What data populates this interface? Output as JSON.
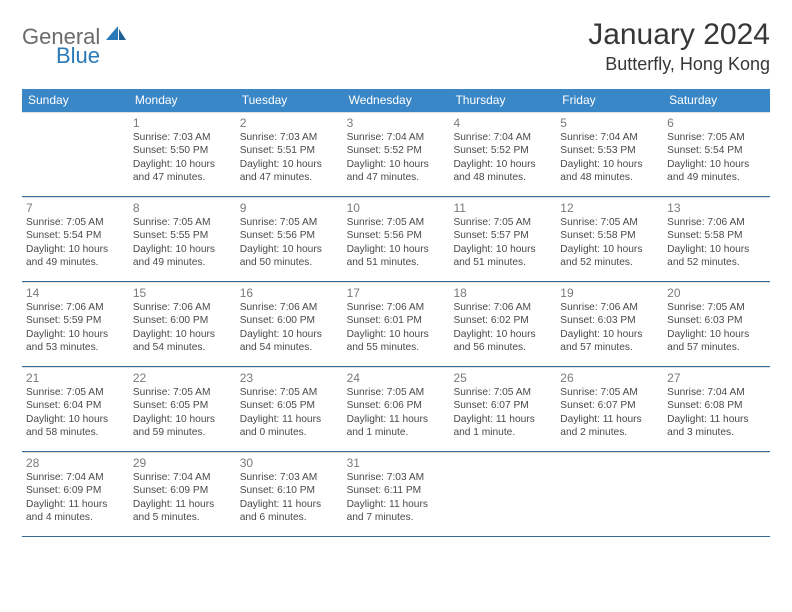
{
  "brand": {
    "part1": "General",
    "part2": "Blue"
  },
  "title": "January 2024",
  "location": "Butterfly, Hong Kong",
  "colors": {
    "header_bg": "#3a87c7",
    "header_text": "#ffffff",
    "rule": "#3a6a9a",
    "daynum": "#7a7a7a",
    "body_text": "#4a4a4a",
    "title_text": "#373737",
    "logo_gray": "#6b6b6b",
    "logo_blue": "#2a7ab9"
  },
  "day_names": [
    "Sunday",
    "Monday",
    "Tuesday",
    "Wednesday",
    "Thursday",
    "Friday",
    "Saturday"
  ],
  "weeks": [
    [
      {
        "n": "",
        "sr": "",
        "ss": "",
        "dl": ""
      },
      {
        "n": "1",
        "sr": "Sunrise: 7:03 AM",
        "ss": "Sunset: 5:50 PM",
        "dl": "Daylight: 10 hours and 47 minutes."
      },
      {
        "n": "2",
        "sr": "Sunrise: 7:03 AM",
        "ss": "Sunset: 5:51 PM",
        "dl": "Daylight: 10 hours and 47 minutes."
      },
      {
        "n": "3",
        "sr": "Sunrise: 7:04 AM",
        "ss": "Sunset: 5:52 PM",
        "dl": "Daylight: 10 hours and 47 minutes."
      },
      {
        "n": "4",
        "sr": "Sunrise: 7:04 AM",
        "ss": "Sunset: 5:52 PM",
        "dl": "Daylight: 10 hours and 48 minutes."
      },
      {
        "n": "5",
        "sr": "Sunrise: 7:04 AM",
        "ss": "Sunset: 5:53 PM",
        "dl": "Daylight: 10 hours and 48 minutes."
      },
      {
        "n": "6",
        "sr": "Sunrise: 7:05 AM",
        "ss": "Sunset: 5:54 PM",
        "dl": "Daylight: 10 hours and 49 minutes."
      }
    ],
    [
      {
        "n": "7",
        "sr": "Sunrise: 7:05 AM",
        "ss": "Sunset: 5:54 PM",
        "dl": "Daylight: 10 hours and 49 minutes."
      },
      {
        "n": "8",
        "sr": "Sunrise: 7:05 AM",
        "ss": "Sunset: 5:55 PM",
        "dl": "Daylight: 10 hours and 49 minutes."
      },
      {
        "n": "9",
        "sr": "Sunrise: 7:05 AM",
        "ss": "Sunset: 5:56 PM",
        "dl": "Daylight: 10 hours and 50 minutes."
      },
      {
        "n": "10",
        "sr": "Sunrise: 7:05 AM",
        "ss": "Sunset: 5:56 PM",
        "dl": "Daylight: 10 hours and 51 minutes."
      },
      {
        "n": "11",
        "sr": "Sunrise: 7:05 AM",
        "ss": "Sunset: 5:57 PM",
        "dl": "Daylight: 10 hours and 51 minutes."
      },
      {
        "n": "12",
        "sr": "Sunrise: 7:05 AM",
        "ss": "Sunset: 5:58 PM",
        "dl": "Daylight: 10 hours and 52 minutes."
      },
      {
        "n": "13",
        "sr": "Sunrise: 7:06 AM",
        "ss": "Sunset: 5:58 PM",
        "dl": "Daylight: 10 hours and 52 minutes."
      }
    ],
    [
      {
        "n": "14",
        "sr": "Sunrise: 7:06 AM",
        "ss": "Sunset: 5:59 PM",
        "dl": "Daylight: 10 hours and 53 minutes."
      },
      {
        "n": "15",
        "sr": "Sunrise: 7:06 AM",
        "ss": "Sunset: 6:00 PM",
        "dl": "Daylight: 10 hours and 54 minutes."
      },
      {
        "n": "16",
        "sr": "Sunrise: 7:06 AM",
        "ss": "Sunset: 6:00 PM",
        "dl": "Daylight: 10 hours and 54 minutes."
      },
      {
        "n": "17",
        "sr": "Sunrise: 7:06 AM",
        "ss": "Sunset: 6:01 PM",
        "dl": "Daylight: 10 hours and 55 minutes."
      },
      {
        "n": "18",
        "sr": "Sunrise: 7:06 AM",
        "ss": "Sunset: 6:02 PM",
        "dl": "Daylight: 10 hours and 56 minutes."
      },
      {
        "n": "19",
        "sr": "Sunrise: 7:06 AM",
        "ss": "Sunset: 6:03 PM",
        "dl": "Daylight: 10 hours and 57 minutes."
      },
      {
        "n": "20",
        "sr": "Sunrise: 7:05 AM",
        "ss": "Sunset: 6:03 PM",
        "dl": "Daylight: 10 hours and 57 minutes."
      }
    ],
    [
      {
        "n": "21",
        "sr": "Sunrise: 7:05 AM",
        "ss": "Sunset: 6:04 PM",
        "dl": "Daylight: 10 hours and 58 minutes."
      },
      {
        "n": "22",
        "sr": "Sunrise: 7:05 AM",
        "ss": "Sunset: 6:05 PM",
        "dl": "Daylight: 10 hours and 59 minutes."
      },
      {
        "n": "23",
        "sr": "Sunrise: 7:05 AM",
        "ss": "Sunset: 6:05 PM",
        "dl": "Daylight: 11 hours and 0 minutes."
      },
      {
        "n": "24",
        "sr": "Sunrise: 7:05 AM",
        "ss": "Sunset: 6:06 PM",
        "dl": "Daylight: 11 hours and 1 minute."
      },
      {
        "n": "25",
        "sr": "Sunrise: 7:05 AM",
        "ss": "Sunset: 6:07 PM",
        "dl": "Daylight: 11 hours and 1 minute."
      },
      {
        "n": "26",
        "sr": "Sunrise: 7:05 AM",
        "ss": "Sunset: 6:07 PM",
        "dl": "Daylight: 11 hours and 2 minutes."
      },
      {
        "n": "27",
        "sr": "Sunrise: 7:04 AM",
        "ss": "Sunset: 6:08 PM",
        "dl": "Daylight: 11 hours and 3 minutes."
      }
    ],
    [
      {
        "n": "28",
        "sr": "Sunrise: 7:04 AM",
        "ss": "Sunset: 6:09 PM",
        "dl": "Daylight: 11 hours and 4 minutes."
      },
      {
        "n": "29",
        "sr": "Sunrise: 7:04 AM",
        "ss": "Sunset: 6:09 PM",
        "dl": "Daylight: 11 hours and 5 minutes."
      },
      {
        "n": "30",
        "sr": "Sunrise: 7:03 AM",
        "ss": "Sunset: 6:10 PM",
        "dl": "Daylight: 11 hours and 6 minutes."
      },
      {
        "n": "31",
        "sr": "Sunrise: 7:03 AM",
        "ss": "Sunset: 6:11 PM",
        "dl": "Daylight: 11 hours and 7 minutes."
      },
      {
        "n": "",
        "sr": "",
        "ss": "",
        "dl": ""
      },
      {
        "n": "",
        "sr": "",
        "ss": "",
        "dl": ""
      },
      {
        "n": "",
        "sr": "",
        "ss": "",
        "dl": ""
      }
    ]
  ]
}
